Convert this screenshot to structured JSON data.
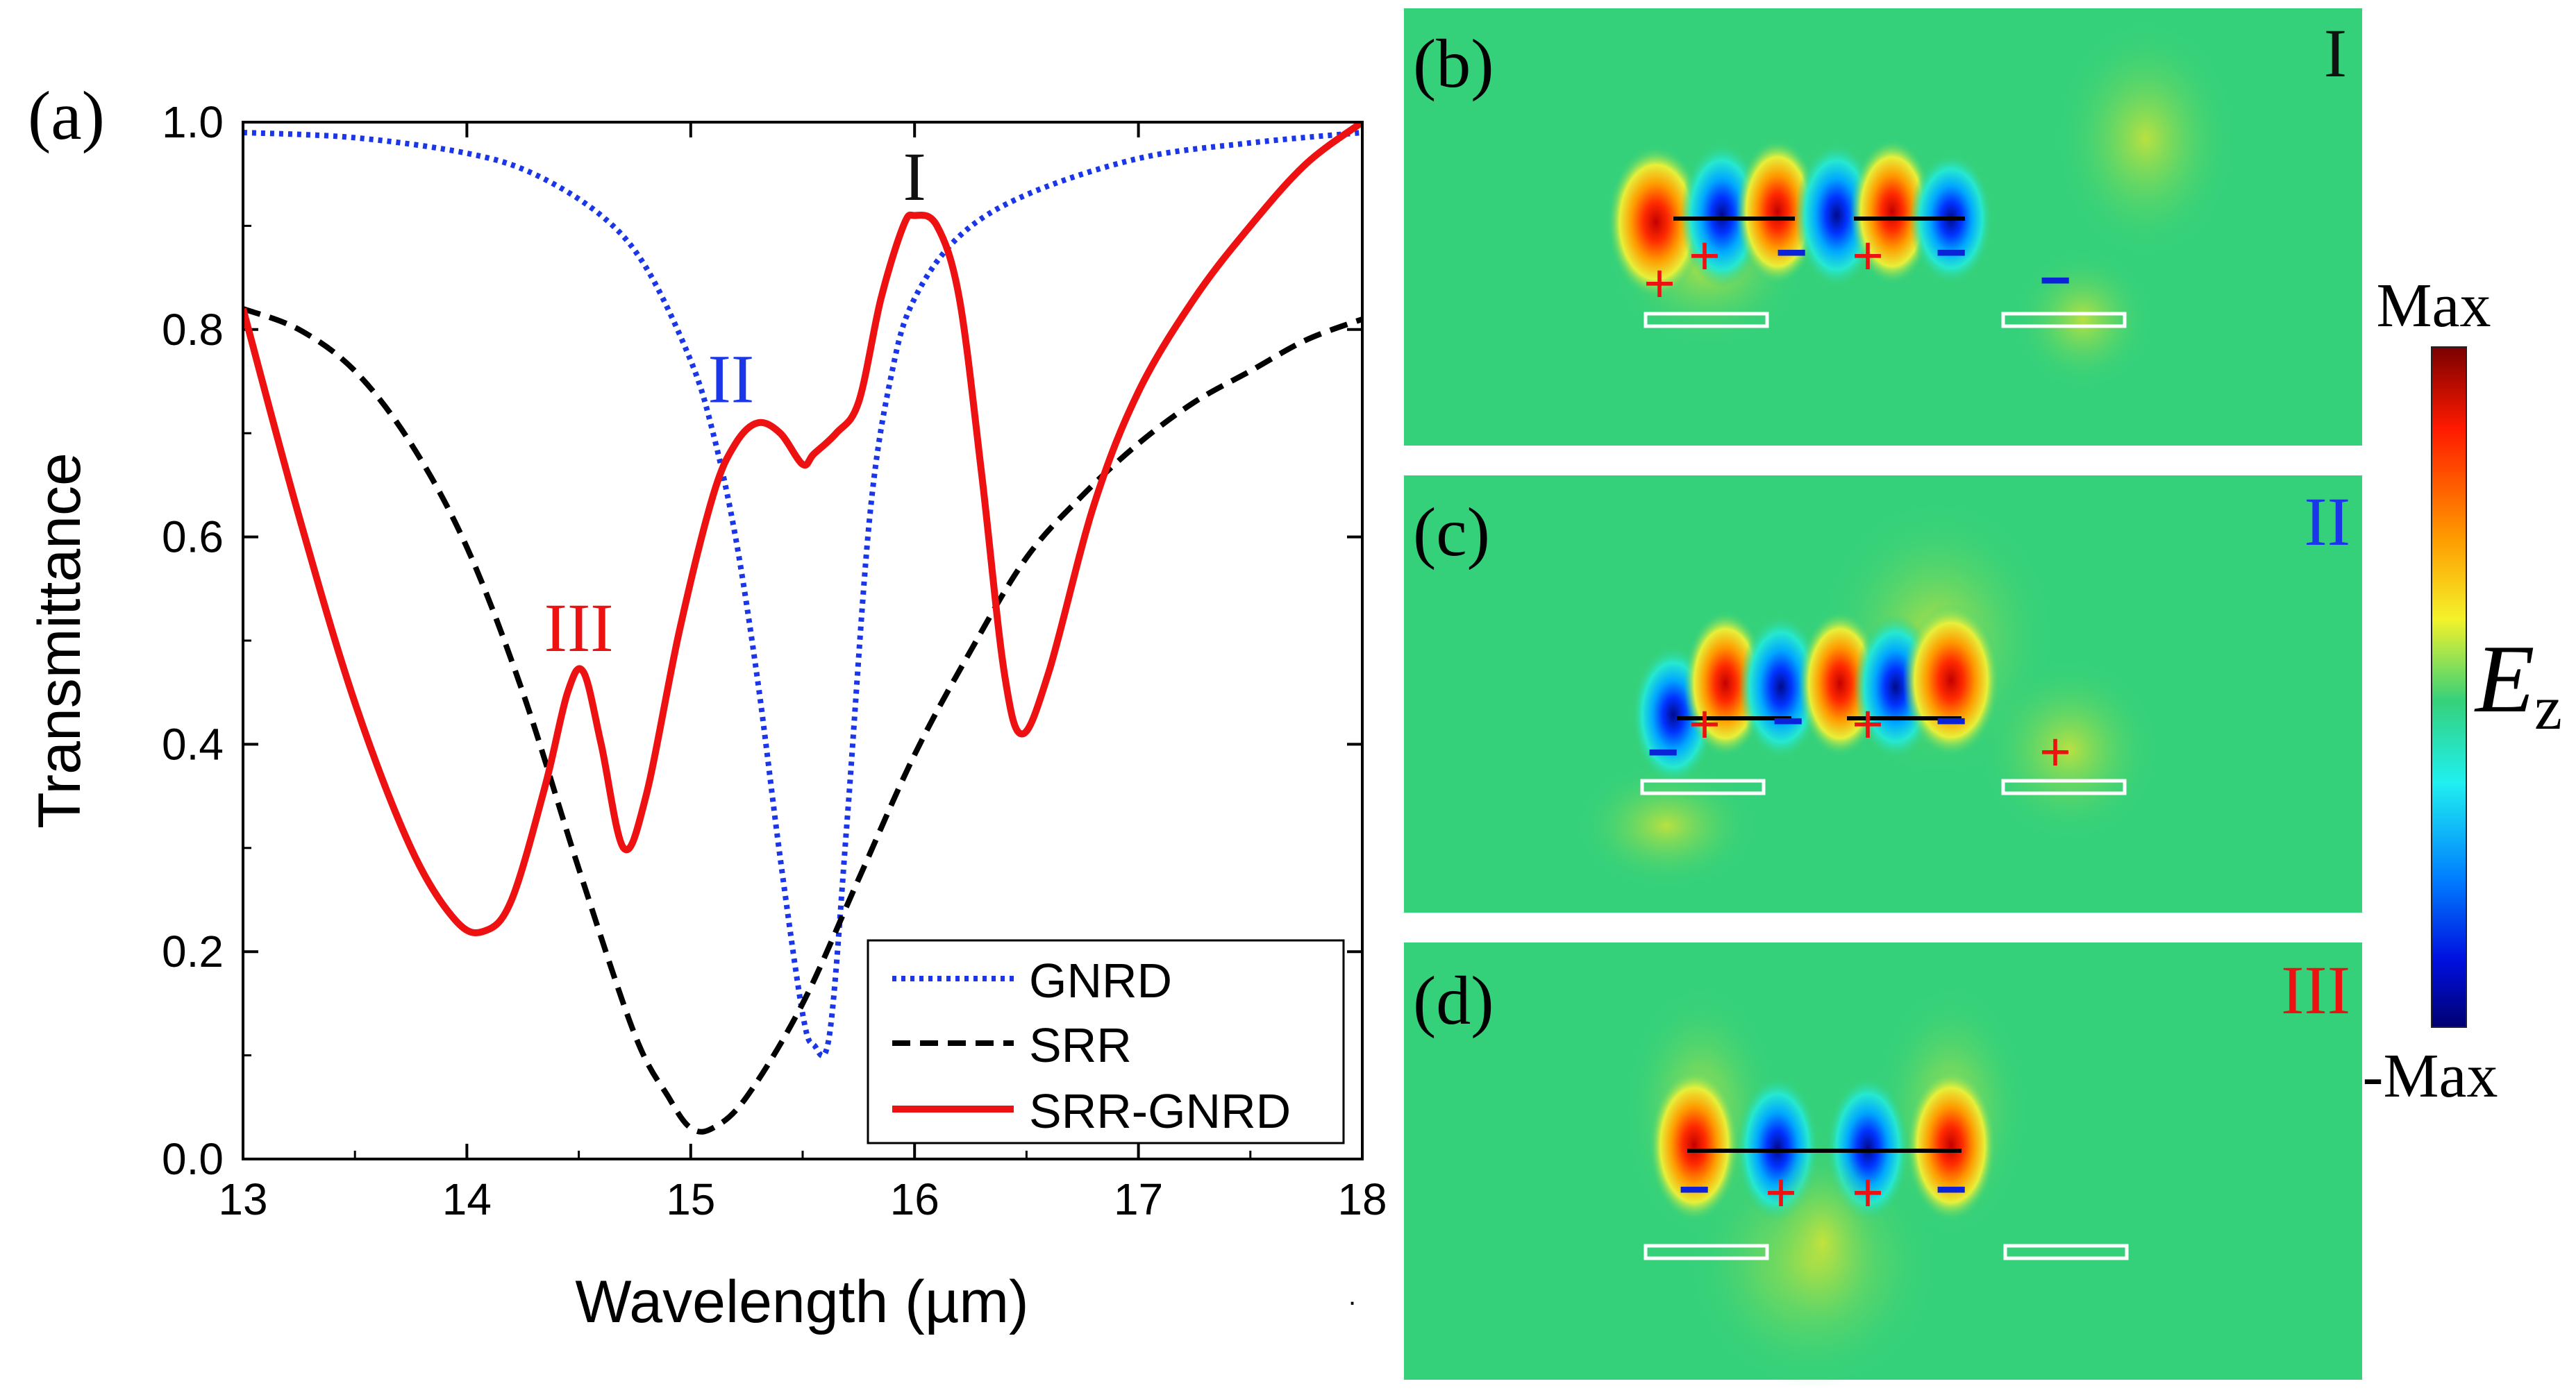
{
  "panels": {
    "a": {
      "label": "(a)"
    },
    "b": {
      "label": "(b)",
      "mode": "I"
    },
    "c": {
      "label": "(c)",
      "mode": "II"
    },
    "d": {
      "label": "(d)",
      "mode": "III"
    }
  },
  "colors": {
    "gnrd": "#1a36e8",
    "srr": "#000000",
    "srr_gnrd": "#ee1111",
    "mode_I": "#111111",
    "mode_II": "#1a36e8",
    "mode_III": "#ee1111",
    "field_background": "#35d17a"
  },
  "colorbar": {
    "max_label": "Max",
    "min_label": "-Max",
    "quantity": "E",
    "subscript": "z"
  },
  "charges": {
    "plus": "+",
    "minus": "−"
  },
  "chart_data": {
    "type": "line",
    "xlabel": "Wavelength (µm)",
    "ylabel": "Transmittance",
    "xlim": [
      13,
      18
    ],
    "ylim": [
      0,
      1
    ],
    "x_ticks": [
      "13",
      "14",
      "15",
      "16",
      "17",
      "18"
    ],
    "y_ticks": [
      "0.0",
      "0.2",
      "0.4",
      "0.6",
      "0.8",
      "1.0"
    ],
    "legend_position": "bottom-right",
    "series": [
      {
        "name": "GNRD",
        "style": "dotted",
        "x": [
          13,
          13.5,
          14,
          14.3,
          14.6,
          14.8,
          15,
          15.1,
          15.2,
          15.3,
          15.4,
          15.5,
          15.55,
          15.62,
          15.7,
          15.8,
          15.9,
          16,
          16.2,
          16.5,
          17,
          17.5,
          18
        ],
        "y": [
          0.99,
          0.985,
          0.97,
          0.95,
          0.91,
          0.86,
          0.77,
          0.7,
          0.6,
          0.46,
          0.29,
          0.14,
          0.11,
          0.12,
          0.33,
          0.62,
          0.76,
          0.83,
          0.89,
          0.93,
          0.965,
          0.98,
          0.99
        ]
      },
      {
        "name": "SRR",
        "style": "dashed",
        "x": [
          13,
          13.25,
          13.5,
          13.75,
          14,
          14.25,
          14.5,
          14.75,
          14.9,
          15,
          15.1,
          15.25,
          15.5,
          15.75,
          16,
          16.25,
          16.5,
          16.75,
          17,
          17.25,
          17.5,
          17.75,
          18
        ],
        "y": [
          0.82,
          0.8,
          0.76,
          0.69,
          0.59,
          0.45,
          0.28,
          0.12,
          0.06,
          0.03,
          0.03,
          0.06,
          0.15,
          0.27,
          0.39,
          0.49,
          0.58,
          0.64,
          0.69,
          0.73,
          0.76,
          0.79,
          0.81
        ]
      },
      {
        "name": "SRR-GNRD",
        "style": "solid",
        "x": [
          13,
          13.25,
          13.5,
          13.75,
          13.95,
          14.08,
          14.2,
          14.35,
          14.45,
          14.52,
          14.6,
          14.7,
          14.8,
          14.95,
          15.1,
          15.2,
          15.3,
          15.4,
          15.5,
          15.55,
          15.65,
          15.75,
          15.85,
          15.95,
          16,
          16.1,
          16.2,
          16.3,
          16.4,
          16.48,
          16.6,
          16.8,
          17,
          17.25,
          17.5,
          17.75,
          18
        ],
        "y": [
          0.82,
          0.62,
          0.44,
          0.3,
          0.23,
          0.22,
          0.25,
          0.36,
          0.45,
          0.47,
          0.4,
          0.3,
          0.35,
          0.51,
          0.64,
          0.69,
          0.71,
          0.7,
          0.67,
          0.68,
          0.7,
          0.73,
          0.83,
          0.9,
          0.91,
          0.9,
          0.83,
          0.66,
          0.47,
          0.41,
          0.47,
          0.63,
          0.74,
          0.83,
          0.9,
          0.96,
          1.0
        ]
      }
    ],
    "annotations": [
      {
        "text": "I",
        "x": 16.0,
        "y": 0.925,
        "series": "SRR-GNRD"
      },
      {
        "text": "II",
        "x": 15.18,
        "y": 0.73,
        "series": "GNRD"
      },
      {
        "text": "III",
        "x": 14.5,
        "y": 0.49,
        "series": "SRR-GNRD"
      }
    ]
  }
}
